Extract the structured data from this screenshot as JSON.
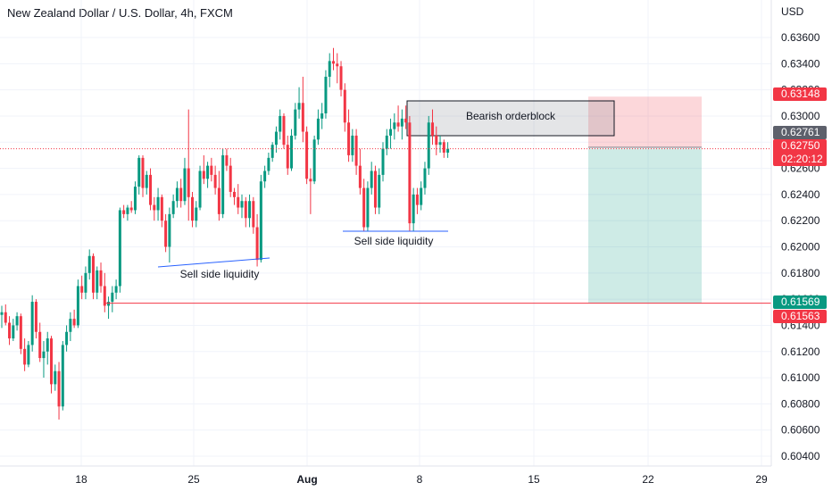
{
  "title": "New Zealand Dollar / U.S. Dollar, 4h, FXCM",
  "currency": "USD",
  "chart_data": {
    "type": "candlestick",
    "y_ticks": [
      "0.63600",
      "0.63400",
      "0.63200",
      "0.63000",
      "0.62800",
      "0.62600",
      "0.62400",
      "0.62200",
      "0.62000",
      "0.61800",
      "0.61600",
      "0.61400",
      "0.61200",
      "0.61000",
      "0.60800",
      "0.60600",
      "0.60400"
    ],
    "x_ticks": [
      "18",
      "25",
      "Aug",
      "8",
      "15",
      "22",
      "29"
    ],
    "ylim": [
      0.6035,
      0.6378
    ],
    "price_tags": [
      {
        "label": "0.63148",
        "value": 0.63148,
        "color": "#f23645"
      },
      {
        "label": "0.62761",
        "value": 0.62761,
        "color": "#5d606b"
      },
      {
        "label": "0.62750",
        "value": 0.6275,
        "color": "#f23645",
        "sub": "02:20:12"
      },
      {
        "label": "0.61569",
        "value": 0.61569,
        "color": "#089981"
      },
      {
        "label": "0.61563",
        "value": 0.61563,
        "color": "#f23645"
      }
    ],
    "annotations": [
      {
        "text": "Bearish orderblock"
      },
      {
        "text": "Sell side liquidity"
      },
      {
        "text": "Sell side liquidity"
      }
    ],
    "candles": [
      [
        0.6148,
        0.6155,
        0.6138,
        0.615
      ],
      [
        0.615,
        0.6156,
        0.614,
        0.6142
      ],
      [
        0.6142,
        0.6147,
        0.6125,
        0.613
      ],
      [
        0.613,
        0.6145,
        0.6128,
        0.614
      ],
      [
        0.614,
        0.615,
        0.6136,
        0.6147
      ],
      [
        0.6147,
        0.6149,
        0.6118,
        0.6122
      ],
      [
        0.6122,
        0.613,
        0.6105,
        0.611
      ],
      [
        0.611,
        0.6128,
        0.6108,
        0.6125
      ],
      [
        0.6125,
        0.6163,
        0.612,
        0.6158
      ],
      [
        0.6158,
        0.616,
        0.613,
        0.6135
      ],
      [
        0.6135,
        0.6142,
        0.6112,
        0.6115
      ],
      [
        0.6115,
        0.6128,
        0.61,
        0.612
      ],
      [
        0.612,
        0.6135,
        0.611,
        0.613
      ],
      [
        0.613,
        0.6132,
        0.6088,
        0.6095
      ],
      [
        0.6095,
        0.611,
        0.609,
        0.6105
      ],
      [
        0.6105,
        0.6112,
        0.6068,
        0.6078
      ],
      [
        0.6078,
        0.6128,
        0.6075,
        0.6125
      ],
      [
        0.6125,
        0.614,
        0.612,
        0.6135
      ],
      [
        0.6135,
        0.615,
        0.6128,
        0.6145
      ],
      [
        0.6145,
        0.6152,
        0.6138,
        0.614
      ],
      [
        0.614,
        0.6175,
        0.6138,
        0.617
      ],
      [
        0.617,
        0.6178,
        0.616,
        0.6165
      ],
      [
        0.6165,
        0.6185,
        0.616,
        0.618
      ],
      [
        0.618,
        0.6198,
        0.6175,
        0.6193
      ],
      [
        0.6193,
        0.6195,
        0.616,
        0.6165
      ],
      [
        0.6165,
        0.6185,
        0.616,
        0.6182
      ],
      [
        0.6182,
        0.6188,
        0.6165,
        0.617
      ],
      [
        0.617,
        0.618,
        0.615,
        0.6155
      ],
      [
        0.6155,
        0.6162,
        0.6145,
        0.6158
      ],
      [
        0.6158,
        0.617,
        0.615,
        0.6165
      ],
      [
        0.6165,
        0.6175,
        0.616,
        0.617
      ],
      [
        0.617,
        0.623,
        0.6165,
        0.6228
      ],
      [
        0.6228,
        0.6232,
        0.6222,
        0.6225
      ],
      [
        0.6225,
        0.6232,
        0.622,
        0.623
      ],
      [
        0.623,
        0.6235,
        0.6226,
        0.6228
      ],
      [
        0.6228,
        0.625,
        0.6225,
        0.6246
      ],
      [
        0.6246,
        0.627,
        0.624,
        0.6268
      ],
      [
        0.6268,
        0.627,
        0.6238,
        0.6245
      ],
      [
        0.6245,
        0.6258,
        0.624,
        0.6255
      ],
      [
        0.6255,
        0.626,
        0.6228,
        0.6232
      ],
      [
        0.6232,
        0.6238,
        0.622,
        0.6228
      ],
      [
        0.6228,
        0.6245,
        0.622,
        0.6238
      ],
      [
        0.6238,
        0.624,
        0.6215,
        0.622
      ],
      [
        0.622,
        0.6225,
        0.6196,
        0.62
      ],
      [
        0.62,
        0.623,
        0.6188,
        0.6225
      ],
      [
        0.6225,
        0.624,
        0.6222,
        0.6235
      ],
      [
        0.6235,
        0.625,
        0.623,
        0.6245
      ],
      [
        0.6245,
        0.6252,
        0.623,
        0.6235
      ],
      [
        0.6235,
        0.6268,
        0.6232,
        0.626
      ],
      [
        0.626,
        0.6305,
        0.622,
        0.6238
      ],
      [
        0.6238,
        0.6242,
        0.6215,
        0.622
      ],
      [
        0.622,
        0.6235,
        0.6215,
        0.623
      ],
      [
        0.623,
        0.6262,
        0.6228,
        0.6258
      ],
      [
        0.6258,
        0.627,
        0.6248,
        0.6252
      ],
      [
        0.6252,
        0.6265,
        0.6245,
        0.6262
      ],
      [
        0.6262,
        0.6268,
        0.625,
        0.6255
      ],
      [
        0.6255,
        0.6262,
        0.624,
        0.6245
      ],
      [
        0.6245,
        0.6258,
        0.622,
        0.6225
      ],
      [
        0.6225,
        0.6275,
        0.6222,
        0.627
      ],
      [
        0.627,
        0.6275,
        0.6258,
        0.6262
      ],
      [
        0.6262,
        0.6268,
        0.6238,
        0.6242
      ],
      [
        0.6242,
        0.6245,
        0.6232,
        0.6238
      ],
      [
        0.6238,
        0.6248,
        0.6225,
        0.623
      ],
      [
        0.623,
        0.624,
        0.6222,
        0.6235
      ],
      [
        0.6235,
        0.6238,
        0.6215,
        0.6222
      ],
      [
        0.6222,
        0.624,
        0.6215,
        0.6235
      ],
      [
        0.6235,
        0.6238,
        0.621,
        0.6215
      ],
      [
        0.6215,
        0.6225,
        0.6185,
        0.619
      ],
      [
        0.619,
        0.6255,
        0.6188,
        0.625
      ],
      [
        0.625,
        0.6262,
        0.6245,
        0.6258
      ],
      [
        0.6258,
        0.6272,
        0.6255,
        0.6268
      ],
      [
        0.6268,
        0.628,
        0.6265,
        0.6278
      ],
      [
        0.6278,
        0.6292,
        0.6272,
        0.6288
      ],
      [
        0.6288,
        0.6305,
        0.6282,
        0.63
      ],
      [
        0.63,
        0.6302,
        0.6275,
        0.6278
      ],
      [
        0.6278,
        0.6285,
        0.6255,
        0.626
      ],
      [
        0.626,
        0.629,
        0.6258,
        0.6285
      ],
      [
        0.6285,
        0.631,
        0.6282,
        0.6305
      ],
      [
        0.6305,
        0.6322,
        0.6298,
        0.631
      ],
      [
        0.631,
        0.633,
        0.628,
        0.6288
      ],
      [
        0.6288,
        0.6292,
        0.6248,
        0.6252
      ],
      [
        0.6252,
        0.626,
        0.6225,
        0.625
      ],
      [
        0.625,
        0.6285,
        0.6248,
        0.6282
      ],
      [
        0.6282,
        0.6305,
        0.6278,
        0.6298
      ],
      [
        0.6298,
        0.631,
        0.629,
        0.6302
      ],
      [
        0.6302,
        0.6335,
        0.6298,
        0.633
      ],
      [
        0.633,
        0.6348,
        0.6322,
        0.6342
      ],
      [
        0.6342,
        0.6352,
        0.6335,
        0.634
      ],
      [
        0.634,
        0.6348,
        0.6325,
        0.6338
      ],
      [
        0.6338,
        0.6342,
        0.6315,
        0.632
      ],
      [
        0.632,
        0.6325,
        0.6288,
        0.6295
      ],
      [
        0.6295,
        0.6305,
        0.6265,
        0.627
      ],
      [
        0.627,
        0.629,
        0.6265,
        0.6285
      ],
      [
        0.6285,
        0.629,
        0.6255,
        0.6262
      ],
      [
        0.6262,
        0.6275,
        0.624,
        0.6245
      ],
      [
        0.6245,
        0.6252,
        0.6212,
        0.6215
      ],
      [
        0.6215,
        0.625,
        0.6212,
        0.6245
      ],
      [
        0.6245,
        0.6265,
        0.624,
        0.6258
      ],
      [
        0.6258,
        0.6262,
        0.6225,
        0.623
      ],
      [
        0.623,
        0.626,
        0.6225,
        0.6255
      ],
      [
        0.6255,
        0.628,
        0.625,
        0.6275
      ],
      [
        0.6275,
        0.629,
        0.627,
        0.6285
      ],
      [
        0.6285,
        0.6298,
        0.6275,
        0.629
      ],
      [
        0.629,
        0.6302,
        0.6282,
        0.6295
      ],
      [
        0.6295,
        0.6308,
        0.6288,
        0.6292
      ],
      [
        0.6292,
        0.6305,
        0.6282,
        0.6298
      ],
      [
        0.6298,
        0.6308,
        0.629,
        0.6295
      ],
      [
        0.6295,
        0.63,
        0.6212,
        0.6218
      ],
      [
        0.6218,
        0.6245,
        0.6212,
        0.624
      ],
      [
        0.624,
        0.6245,
        0.6225,
        0.6232
      ],
      [
        0.6232,
        0.625,
        0.6228,
        0.6245
      ],
      [
        0.6245,
        0.6265,
        0.624,
        0.626
      ],
      [
        0.626,
        0.63,
        0.6255,
        0.6295
      ],
      [
        0.6295,
        0.6305,
        0.6278,
        0.6285
      ],
      [
        0.6285,
        0.6292,
        0.627,
        0.6278
      ],
      [
        0.6278,
        0.6285,
        0.6272,
        0.628
      ],
      [
        0.628,
        0.6282,
        0.6268,
        0.6272
      ],
      [
        0.6272,
        0.628,
        0.6268,
        0.6275
      ]
    ]
  }
}
